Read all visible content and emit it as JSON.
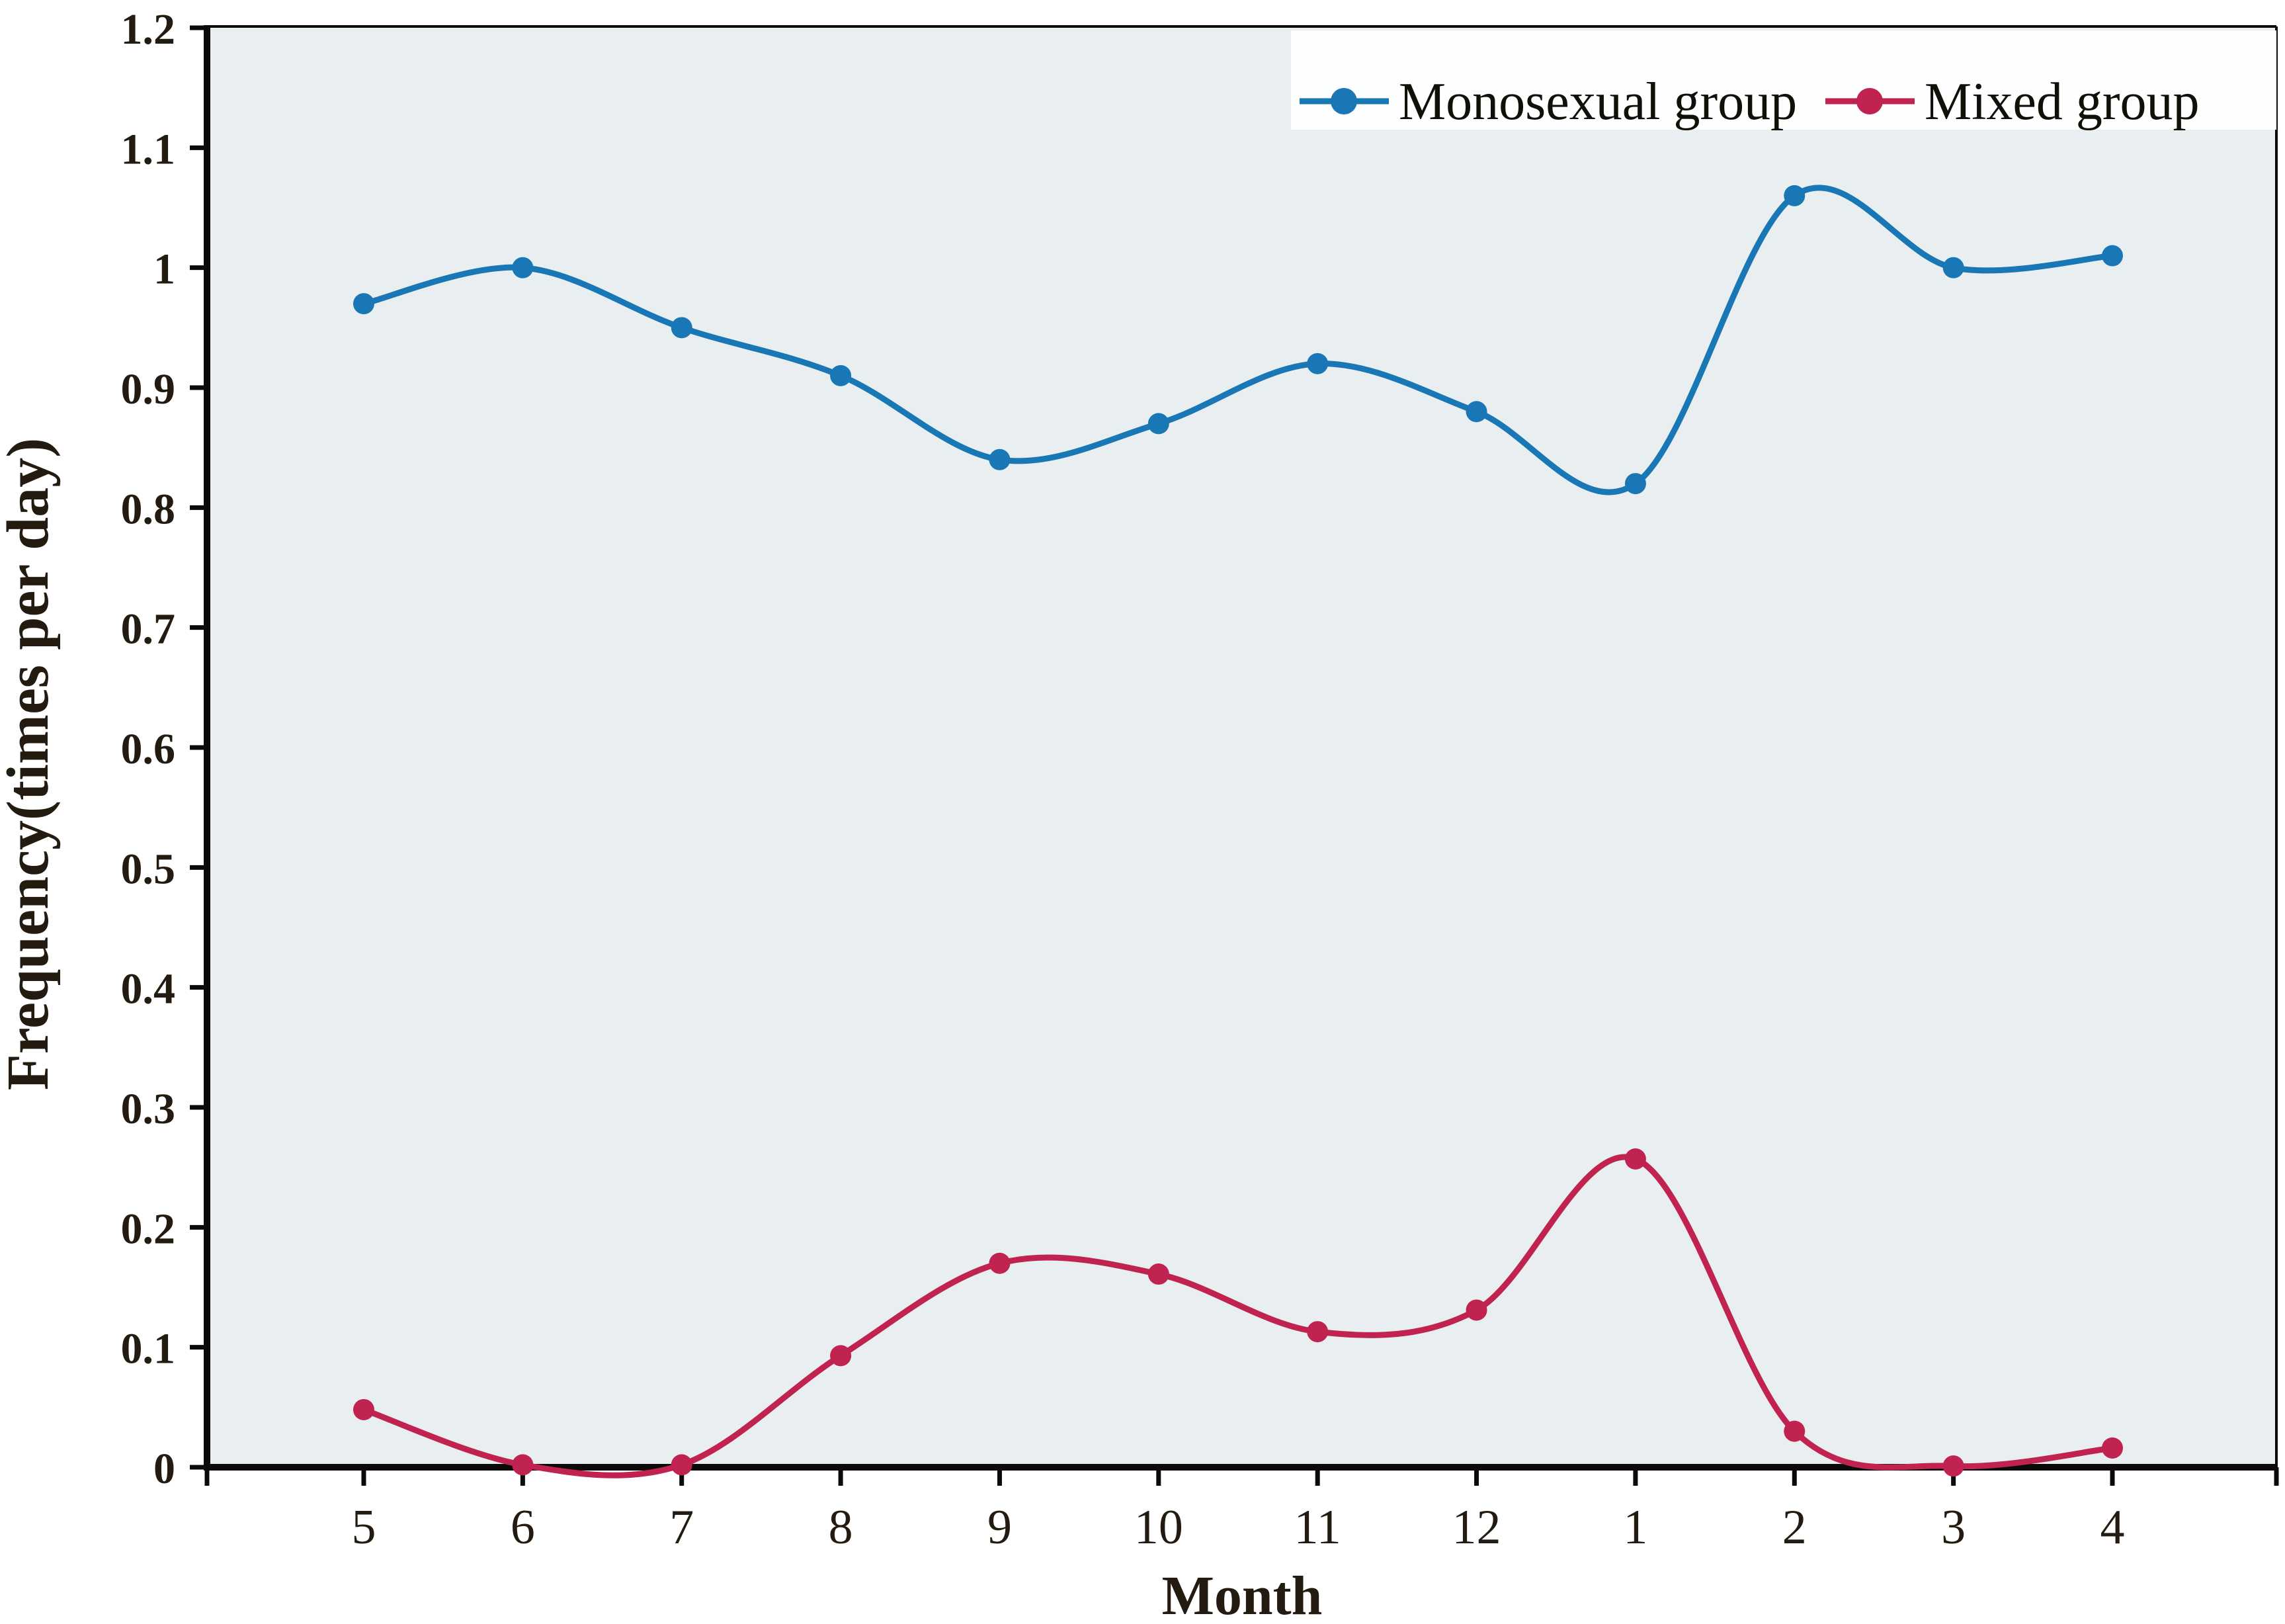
{
  "figure": {
    "background": "#ffffff",
    "plot_background": "#e9eff1",
    "axis_color": "#0c0a08",
    "text_color": "#231b10",
    "legend_background": "#fdfefe"
  },
  "chart_data": {
    "type": "line",
    "line_style": "smooth",
    "grid": false,
    "legend_position": "top-right",
    "xlabel": "Month",
    "ylabel": "Frequency(times per day)",
    "categories": [
      "5",
      "6",
      "7",
      "8",
      "9",
      "10",
      "11",
      "12",
      "1",
      "2",
      "3",
      "4"
    ],
    "series": [
      {
        "name": "Monosexual group",
        "color": "#1977b5",
        "values": [
          0.97,
          1.0,
          0.95,
          0.91,
          0.84,
          0.87,
          0.92,
          0.88,
          0.82,
          1.06,
          1.0,
          1.01
        ]
      },
      {
        "name": "Mixed group",
        "color": "#c02350",
        "values": [
          0.048,
          0.002,
          0.002,
          0.093,
          0.17,
          0.161,
          0.113,
          0.131,
          0.257,
          0.03,
          0.001,
          0.016
        ]
      }
    ],
    "ylim": [
      0,
      1.2
    ],
    "ytick_step": 0.1,
    "ytick_labels": [
      "0",
      "0.1",
      "0.2",
      "0.3",
      "0.4",
      "0.5",
      "0.6",
      "0.7",
      "0.8",
      "0.9",
      "1",
      "1.1",
      "1.2"
    ]
  }
}
